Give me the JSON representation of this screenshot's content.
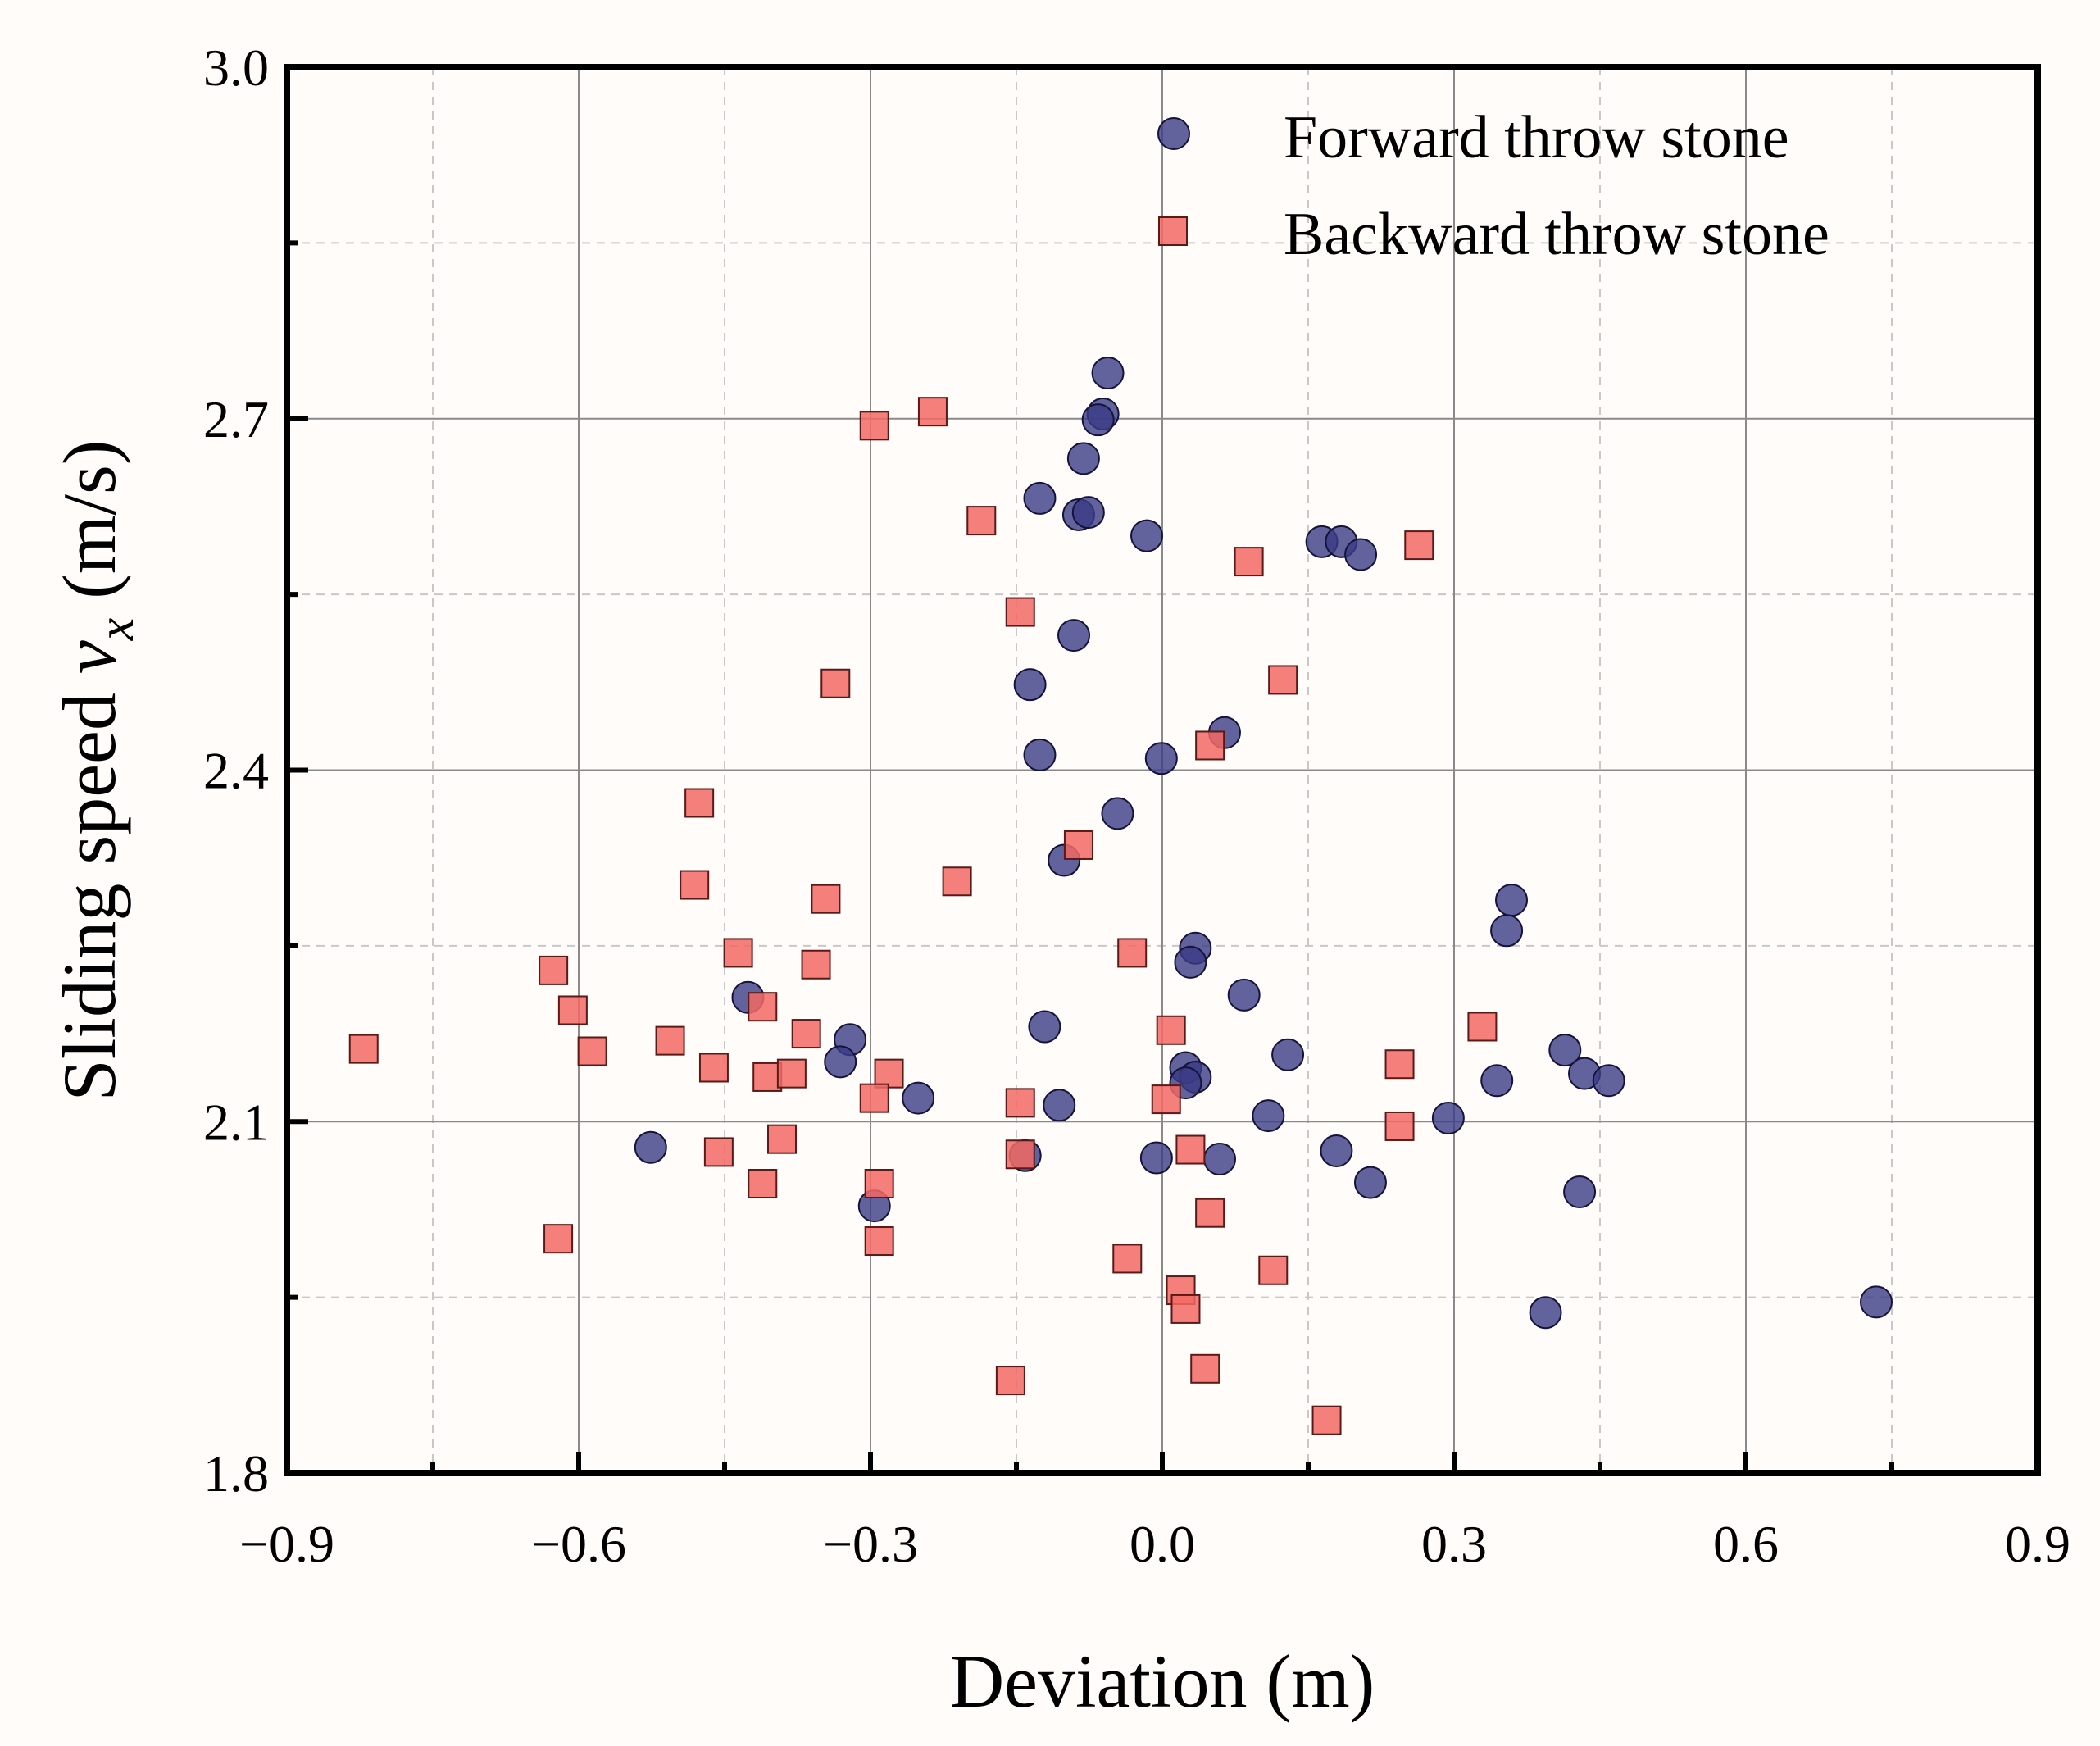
{
  "chart_data": {
    "type": "scatter",
    "xlabel": "Deviation (m)",
    "ylabel": "Sliding speed v_x (m/s)",
    "ylabel_parts": {
      "prefix": "Sliding speed ",
      "var": "v",
      "sub": "x",
      "suffix": " (m/s)"
    },
    "xlim": [
      -0.9,
      0.9
    ],
    "ylim": [
      1.8,
      3.0
    ],
    "xticks": [
      -0.9,
      -0.6,
      -0.3,
      0.0,
      0.3,
      0.6,
      0.9
    ],
    "xtick_labels": [
      "−0.9",
      "−0.6",
      "−0.3",
      "0.0",
      "0.3",
      "0.6",
      "0.9"
    ],
    "xminor": [
      -0.75,
      -0.45,
      -0.15,
      0.15,
      0.45,
      0.75
    ],
    "yticks": [
      1.8,
      2.1,
      2.4,
      2.7,
      3.0
    ],
    "ytick_labels": [
      "1.8",
      "2.1",
      "2.4",
      "2.7",
      "3.0"
    ],
    "yminor": [
      1.95,
      2.25,
      2.55,
      2.85
    ],
    "grid": true,
    "legend_position": "top-right",
    "series": [
      {
        "name": "Forward throw stone",
        "marker": "circle",
        "color": "#3b3b86",
        "x": [
          -0.056,
          -0.061,
          -0.066,
          -0.081,
          -0.126,
          -0.086,
          -0.076,
          -0.016,
          0.164,
          0.184,
          0.204,
          -0.091,
          -0.136,
          -0.126,
          0.064,
          -0.001,
          -0.046,
          -0.101,
          0.359,
          0.354,
          0.034,
          0.029,
          -0.426,
          -0.321,
          -0.331,
          -0.251,
          -0.121,
          0.084,
          0.129,
          0.024,
          0.034,
          0.024,
          -0.106,
          -0.526,
          -0.141,
          -0.006,
          0.059,
          0.109,
          0.179,
          0.294,
          0.214,
          0.414,
          0.434,
          0.459,
          0.344,
          0.429,
          -0.296,
          0.394,
          0.734
        ],
        "y": [
          2.739,
          2.704,
          2.699,
          2.666,
          2.632,
          2.618,
          2.62,
          2.6,
          2.595,
          2.595,
          2.584,
          2.515,
          2.473,
          2.413,
          2.432,
          2.41,
          2.363,
          2.323,
          2.289,
          2.263,
          2.248,
          2.236,
          2.206,
          2.17,
          2.151,
          2.12,
          2.181,
          2.208,
          2.157,
          2.146,
          2.138,
          2.133,
          2.114,
          2.078,
          2.071,
          2.069,
          2.068,
          2.105,
          2.075,
          2.103,
          2.048,
          2.161,
          2.141,
          2.135,
          2.135,
          2.04,
          2.028,
          1.937,
          1.946
        ]
      },
      {
        "name": "Backward throw stone",
        "marker": "square",
        "color": "#f36a64",
        "x": [
          -0.296,
          -0.236,
          -0.186,
          0.089,
          0.264,
          -0.146,
          -0.336,
          0.124,
          0.049,
          -0.476,
          -0.086,
          -0.481,
          -0.211,
          -0.346,
          -0.436,
          -0.031,
          -0.626,
          -0.356,
          -0.606,
          -0.411,
          -0.366,
          0.009,
          0.329,
          -0.821,
          -0.586,
          -0.506,
          -0.461,
          0.244,
          -0.406,
          -0.381,
          -0.281,
          -0.296,
          -0.146,
          0.004,
          0.244,
          -0.391,
          0.029,
          -0.456,
          -0.146,
          -0.411,
          -0.291,
          0.049,
          -0.621,
          -0.291,
          -0.036,
          0.114,
          0.019,
          0.024,
          0.044,
          -0.156,
          0.169
        ],
        "y": [
          2.694,
          2.706,
          2.613,
          2.578,
          2.592,
          2.535,
          2.474,
          2.477,
          2.421,
          2.372,
          2.336,
          2.302,
          2.305,
          2.29,
          2.244,
          2.244,
          2.229,
          2.234,
          2.195,
          2.198,
          2.175,
          2.178,
          2.181,
          2.162,
          2.16,
          2.169,
          2.146,
          2.149,
          2.138,
          2.141,
          2.141,
          2.12,
          2.116,
          2.119,
          2.096,
          2.085,
          2.076,
          2.074,
          2.072,
          2.047,
          2.047,
          2.022,
          2.0,
          1.998,
          1.983,
          1.973,
          1.956,
          1.94,
          1.889,
          1.879,
          1.845
        ]
      }
    ]
  }
}
